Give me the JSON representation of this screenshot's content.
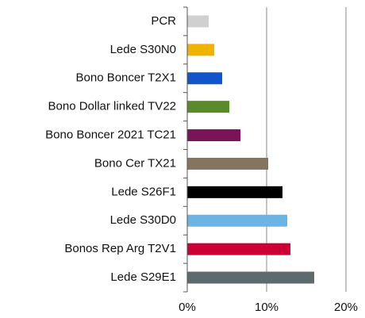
{
  "chart_data": {
    "type": "bar",
    "orientation": "horizontal",
    "categories": [
      "PCR",
      "Lede S30N0",
      "Bono Boncer T2X1",
      "Bono Dollar linked TV22",
      "Bono Boncer 2021 TC21",
      "Bono Cer TX21",
      "Lede S26F1",
      "Lede S30D0",
      "Bonos Rep Arg T2V1",
      "Lede S29E1"
    ],
    "values": [
      2.7,
      3.4,
      4.4,
      5.3,
      6.7,
      10.2,
      12.0,
      12.6,
      13.0,
      16.0
    ],
    "colors": [
      "#d0d0d0",
      "#f0b400",
      "#1155cc",
      "#5b8a2a",
      "#7a1458",
      "#837560",
      "#000000",
      "#6cb4e4",
      "#cc0033",
      "#5f6a6f"
    ],
    "xlim": [
      0,
      20
    ],
    "xticks": [
      {
        "value": 0,
        "label": "0%"
      },
      {
        "value": 10,
        "label": "10%"
      },
      {
        "value": 20,
        "label": "20%"
      }
    ],
    "grid": true
  }
}
